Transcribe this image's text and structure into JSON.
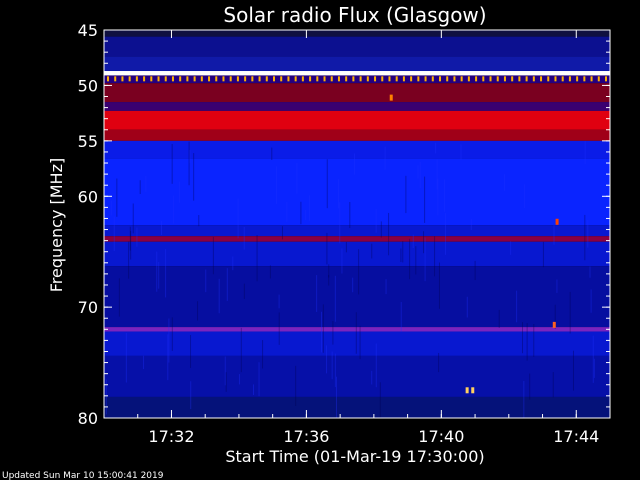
{
  "chart_data": {
    "type": "heatmap",
    "title": "Solar radio Flux (Glasgow)",
    "xlabel": "Start Time (01-Mar-19 17:30:00)",
    "ylabel": "Frequency [MHz]",
    "x_ticks": [
      "17:32",
      "17:36",
      "17:40",
      "17:44"
    ],
    "y_ticks": [
      "45",
      "50",
      "55",
      "60",
      "70",
      "80"
    ],
    "x_range": [
      "17:30:00",
      "17:45:00"
    ],
    "y_range": [
      45,
      80
    ],
    "colormap": [
      "#000020",
      "#0000b0",
      "#0a24ff",
      "#c00010",
      "#ff2020",
      "#ffcc40",
      "#ffffff"
    ],
    "bands": [
      {
        "from": 45.0,
        "to": 45.6,
        "color": "#101040"
      },
      {
        "from": 45.6,
        "to": 47.4,
        "color": "#0c1090"
      },
      {
        "from": 47.4,
        "to": 48.7,
        "color": "#101aa8"
      },
      {
        "from": 48.7,
        "to": 49.1,
        "color": "#ffffff"
      },
      {
        "from": 49.1,
        "to": 49.8,
        "color": "#240080"
      },
      {
        "from": 49.8,
        "to": 51.5,
        "color": "#7a0020"
      },
      {
        "from": 51.5,
        "to": 52.3,
        "color": "#3a0070"
      },
      {
        "from": 52.3,
        "to": 54.0,
        "color": "#e00010"
      },
      {
        "from": 54.0,
        "to": 55.0,
        "color": "#a00018"
      },
      {
        "from": 55.0,
        "to": 56.6,
        "color": "#0a1ce8"
      },
      {
        "from": 56.6,
        "to": 62.6,
        "color": "#0a24ff"
      },
      {
        "from": 62.6,
        "to": 63.6,
        "color": "#0818d0"
      },
      {
        "from": 63.6,
        "to": 64.1,
        "color": "#8a0040"
      },
      {
        "from": 64.1,
        "to": 66.3,
        "color": "#0818d0"
      },
      {
        "from": 66.3,
        "to": 71.8,
        "color": "#060ea0"
      },
      {
        "from": 71.8,
        "to": 72.2,
        "color": "#7a24c0"
      },
      {
        "from": 72.2,
        "to": 74.4,
        "color": "#0818d0"
      },
      {
        "from": 74.4,
        "to": 78.1,
        "color": "#0610a8"
      },
      {
        "from": 78.1,
        "to": 80.0,
        "color": "#05127a"
      }
    ],
    "comb_line": {
      "freq": 49.45,
      "color": "#ffb000",
      "count": 70
    },
    "hotspots": [
      {
        "t": "17:38:30",
        "f": 51.1,
        "color": "#ff8000"
      },
      {
        "t": "17:40:45",
        "f": 77.5,
        "color": "#ffd060"
      },
      {
        "t": "17:40:55",
        "f": 77.5,
        "color": "#ffd060"
      },
      {
        "t": "17:43:20",
        "f": 71.6,
        "color": "#ff6020"
      },
      {
        "t": "17:43:25",
        "f": 62.3,
        "color": "#ff4000"
      }
    ]
  },
  "footer": {
    "updated": "Updated Sun Mar 10 15:00:41 2019"
  }
}
